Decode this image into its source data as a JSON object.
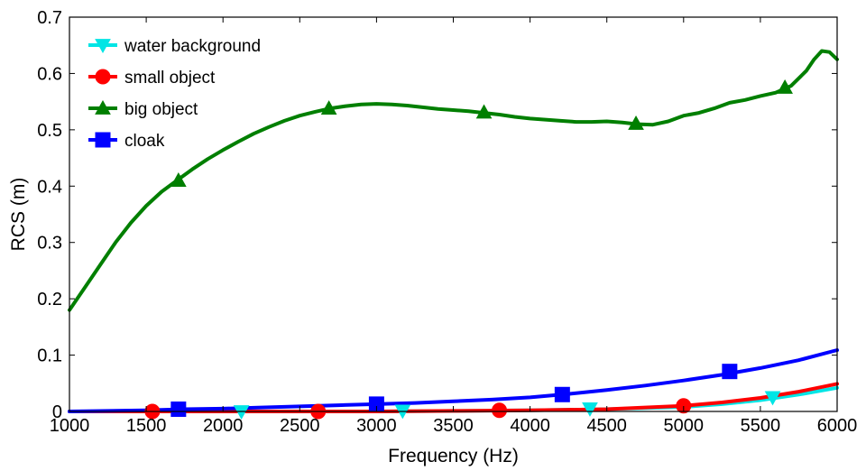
{
  "chart_data": {
    "type": "line",
    "xlabel": "Frequency (Hz)",
    "ylabel": "RCS (m)",
    "xlim": [
      1000,
      6000
    ],
    "ylim": [
      0,
      0.7
    ],
    "xticks": [
      1000,
      1500,
      2000,
      2500,
      3000,
      3500,
      4000,
      4500,
      5000,
      5500,
      6000
    ],
    "yticks": [
      0,
      0.1,
      0.2,
      0.3,
      0.4,
      0.5,
      0.6,
      0.7
    ],
    "ytick_labels": [
      "0",
      "0.1",
      "0.2",
      "0.3",
      "0.4",
      "0.5",
      "0.6",
      "0.7"
    ],
    "grid": false,
    "legend_position": "top-left",
    "series": [
      {
        "name": "water background",
        "color": "#00e5e5",
        "marker": "triangle-down",
        "x": [
          1000,
          1500,
          2000,
          2500,
          3000,
          3500,
          4000,
          4500,
          5000,
          5250,
          5500,
          5750,
          6000
        ],
        "y": [
          0,
          0,
          0,
          0,
          0,
          0.001,
          0.002,
          0.004,
          0.008,
          0.013,
          0.02,
          0.03,
          0.042
        ],
        "marker_x": [
          2120,
          3170,
          4390,
          5580
        ],
        "marker_y": [
          0,
          0.001,
          0.005,
          0.025
        ]
      },
      {
        "name": "small object",
        "color": "#ff0000",
        "marker": "circle",
        "x": [
          1000,
          1500,
          2000,
          2500,
          3000,
          3500,
          4000,
          4500,
          5000,
          5250,
          5500,
          5750,
          6000
        ],
        "y": [
          0,
          0,
          0,
          0,
          0,
          0.001,
          0.002,
          0.004,
          0.01,
          0.016,
          0.024,
          0.035,
          0.049
        ],
        "marker_x": [
          1540,
          2620,
          3800,
          5000
        ],
        "marker_y": [
          0,
          0,
          0.002,
          0.01
        ]
      },
      {
        "name": "big object",
        "color": "#007f00",
        "marker": "triangle-up",
        "x": [
          1000,
          1100,
          1200,
          1300,
          1400,
          1500,
          1600,
          1700,
          1800,
          1900,
          2000,
          2100,
          2200,
          2300,
          2400,
          2500,
          2600,
          2700,
          2800,
          2900,
          3000,
          3100,
          3200,
          3300,
          3400,
          3500,
          3600,
          3700,
          3800,
          3900,
          4000,
          4100,
          4200,
          4300,
          4400,
          4500,
          4600,
          4700,
          4800,
          4900,
          5000,
          5100,
          5200,
          5300,
          5400,
          5500,
          5600,
          5700,
          5800,
          5850,
          5900,
          5950,
          6000
        ],
        "y": [
          0.18,
          0.22,
          0.26,
          0.3,
          0.335,
          0.365,
          0.39,
          0.41,
          0.43,
          0.448,
          0.464,
          0.479,
          0.493,
          0.505,
          0.516,
          0.525,
          0.532,
          0.538,
          0.542,
          0.545,
          0.546,
          0.545,
          0.543,
          0.54,
          0.537,
          0.535,
          0.533,
          0.53,
          0.527,
          0.523,
          0.52,
          0.518,
          0.516,
          0.514,
          0.514,
          0.515,
          0.513,
          0.51,
          0.509,
          0.515,
          0.525,
          0.53,
          0.538,
          0.548,
          0.553,
          0.56,
          0.566,
          0.578,
          0.605,
          0.625,
          0.64,
          0.638,
          0.625
        ],
        "marker_x": [
          1710,
          2690,
          3700,
          4690,
          5660
        ],
        "marker_y": [
          0.41,
          0.538,
          0.531,
          0.511,
          0.575
        ]
      },
      {
        "name": "cloak",
        "color": "#0000ff",
        "marker": "square",
        "x": [
          1000,
          1250,
          1500,
          1750,
          2000,
          2250,
          2500,
          2750,
          3000,
          3250,
          3500,
          3750,
          4000,
          4250,
          4500,
          4750,
          5000,
          5250,
          5500,
          5750,
          6000
        ],
        "y": [
          0,
          0.001,
          0.002,
          0.004,
          0.005,
          0.007,
          0.009,
          0.011,
          0.013,
          0.015,
          0.018,
          0.021,
          0.025,
          0.031,
          0.038,
          0.046,
          0.055,
          0.065,
          0.077,
          0.091,
          0.109
        ],
        "marker_x": [
          1710,
          3000,
          4210,
          5300
        ],
        "marker_y": [
          0.004,
          0.013,
          0.03,
          0.071
        ]
      }
    ]
  }
}
